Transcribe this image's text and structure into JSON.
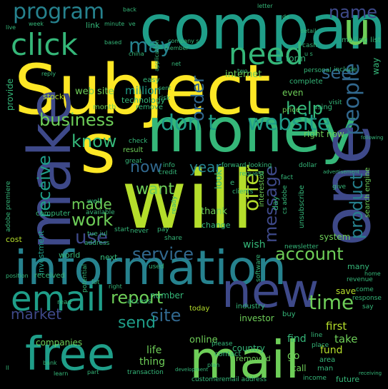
{
  "palette": {
    "background": "#000000",
    "yellow": "#fde725",
    "lime": "#b5de2b",
    "green": "#6ece58",
    "aqua": "#35b779",
    "teal": "#1f9e89",
    "cyan": "#26828e",
    "blue": "#31688e",
    "indigo": "#3e4989",
    "purple": "#482878",
    "dark": "#440154"
  },
  "words": {
    "subject": "Subject",
    "company": "company",
    "will": "will",
    "money": "money",
    "information": "information",
    "make": "make",
    "one": "one",
    "new": "new",
    "free": "free",
    "email": "email",
    "mail": "mail",
    "click": "click",
    "need": "need",
    "s": "s",
    "u": "u",
    "program": "program",
    "business": "business",
    "know": "know",
    "don_t": "don t",
    "website": "website",
    "name": "name",
    "may": "may",
    "see": "see",
    "help": "help",
    "people": "people",
    "product": "product",
    "message": "message",
    "offer": "offer",
    "receive": "receive",
    "now": "now",
    "want": "want",
    "year": "year",
    "made": "made",
    "work": "work",
    "use": "use",
    "service": "service",
    "account": "account",
    "report": "report",
    "time": "time",
    "market": "market",
    "site": "site",
    "send": "send",
    "companies": "companies",
    "order": "order",
    "internet": "internet",
    "million": "million",
    "web_site": "web site",
    "thank": "thank",
    "look": "look",
    "life": "life",
    "find": "find",
    "first": "first",
    "take": "take",
    "save": "save",
    "thing": "thing",
    "online": "online",
    "fund": "fund",
    "go": "go",
    "call": "call",
    "even": "even",
    "form": "form",
    "way": "way",
    "link": "link",
    "stock": "stock",
    "provide": "provide",
    "technology": "technology",
    "month": "month",
    "easy": "easy",
    "remove": "remove",
    "cost": "cost",
    "investment": "investment",
    "computer": "computer",
    "well": "well",
    "result": "result",
    "number": "number",
    "wish": "wish",
    "change": "change",
    "day": "day",
    "interested": "interested",
    "search_engine": "search engine",
    "unsubscribe": "unsubscribe",
    "system": "system",
    "many": "many",
    "right_now": "right now",
    "using": "using",
    "price": "price",
    "complete": "complete",
    "include": "include",
    "world": "world",
    "next": "next",
    "received": "received",
    "access": "access",
    "today": "today",
    "industry": "industry",
    "investor": "investor",
    "buy": "buy",
    "country": "country",
    "removed": "removed",
    "contact": "contact",
    "please": "please",
    "transaction": "transaction",
    "customer": "customer",
    "email_address": "email address",
    "income": "income",
    "future": "future",
    "area": "area",
    "man": "man",
    "place": "place",
    "line": "line",
    "revenue": "revenue",
    "response": "response",
    "say": "say",
    "come": "come",
    "software": "software",
    "newsletter": "newsletter",
    "mailing_list": "mailing list",
    "personal": "personal",
    "visit": "visit",
    "dollar": "dollar",
    "forward_looking": "forward-looking",
    "request": "request",
    "fact": "fact",
    "give": "give",
    "clients": "clients",
    "credit": "credit",
    "great": "great",
    "info": "info",
    "check": "check",
    "never": "never",
    "available": "available",
    "read": "read",
    "address": "address",
    "tue_jul": "tue jul",
    "share": "share",
    "pay": "pay",
    "start": "start",
    "used": "used",
    "ready": "ready",
    "cs_adobe": "cs adobe",
    "adobe_premiere": "adobe premiere",
    "potential": "potential",
    "lot": "lot",
    "position": "position",
    "plan": "plan",
    "part": "part",
    "learn": "learn",
    "bank": "bank",
    "right": "right",
    "based": "based",
    "minute": "minute",
    "back": "back",
    "ve": "ve",
    "week": "week",
    "live": "live",
    "letter": "letter",
    "de": "de",
    "detail": "detail",
    "cash": "cash",
    "china": "china",
    "member": "member",
    "company_s": "company s",
    "net": "net",
    "two": "two",
    "application": "application",
    "sent": "sent",
    "risk": "risk",
    "reply": "reply",
    "e": "e",
    "ll": "ll",
    "home": "home",
    "following": "following",
    "advertisement": "advertisement",
    "development": "development",
    "receiving": "receiving",
    "u_s": "u s"
  }
}
